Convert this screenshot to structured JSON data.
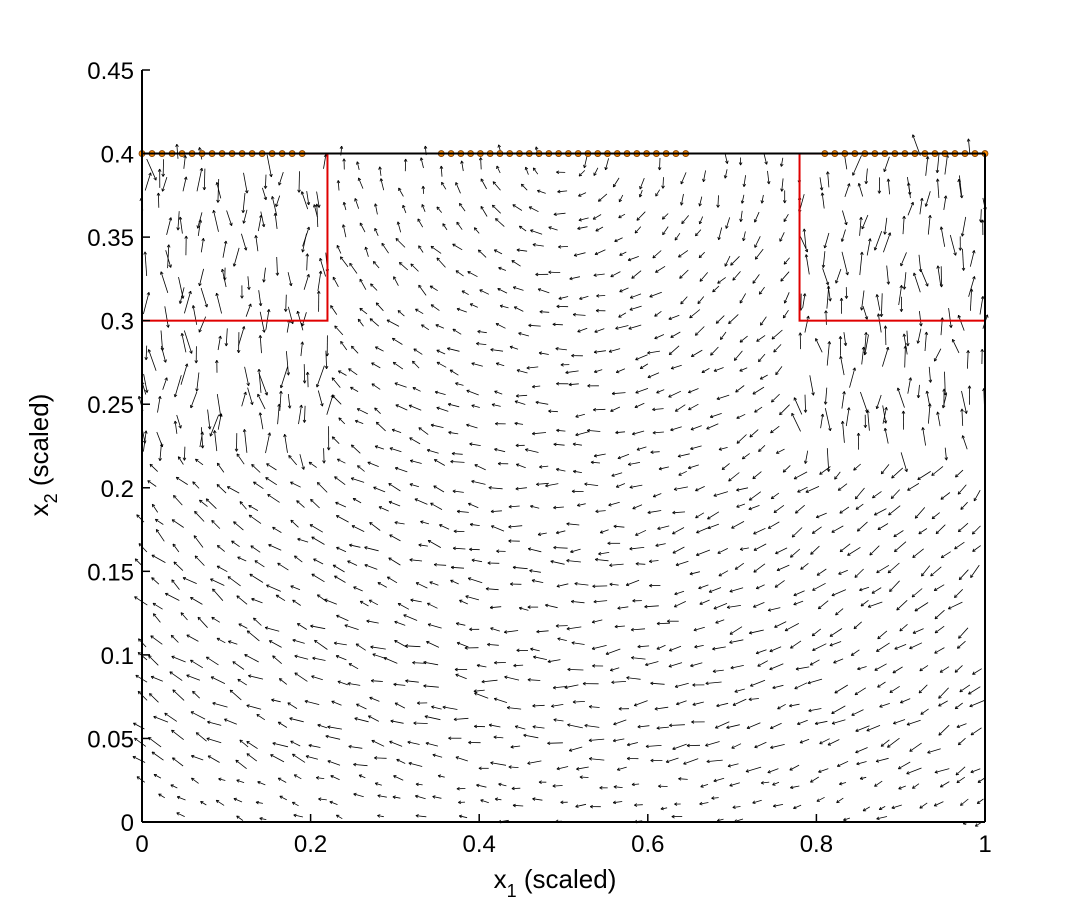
{
  "chart_data": {
    "type": "quiver",
    "title": "",
    "xlabel": {
      "base": "x",
      "subscript": "1",
      "rest": " (scaled)"
    },
    "ylabel": {
      "base": "x",
      "subscript": "2",
      "rest": " (scaled)"
    },
    "xlim": [
      0,
      1
    ],
    "ylim": [
      0,
      0.45
    ],
    "xticks": [
      0,
      0.2,
      0.4,
      0.6,
      0.8,
      1
    ],
    "xtick_labels": [
      "0",
      "0.2",
      "0.4",
      "0.6",
      "0.8",
      "1"
    ],
    "yticks": [
      0,
      0.05,
      0.1,
      0.15,
      0.2,
      0.25,
      0.3,
      0.35,
      0.4,
      0.45
    ],
    "ytick_labels": [
      "0",
      "0.05",
      "0.1",
      "0.15",
      "0.2",
      "0.25",
      "0.3",
      "0.35",
      "0.4",
      "0.45"
    ],
    "grid": false,
    "domain_top_line": {
      "y": 0.4,
      "x": [
        0,
        1
      ],
      "color": "#000000"
    },
    "regions": [
      {
        "name": "left-box",
        "x": [
          0,
          0.22
        ],
        "y": [
          0.3,
          0.4
        ],
        "color": "#e00000"
      },
      {
        "name": "right-box",
        "x": [
          0.78,
          1
        ],
        "y": [
          0.3,
          0.4
        ],
        "color": "#e00000"
      }
    ],
    "marker_series": [
      {
        "name": "left-markers",
        "y": 0.4,
        "x_start": 0,
        "x_end": 0.19,
        "count": 17,
        "color": "#ff8c00"
      },
      {
        "name": "middle-markers",
        "y": 0.4,
        "x_start": 0.355,
        "x_end": 0.645,
        "count": 26,
        "color": "#ff8c00"
      },
      {
        "name": "right-markers",
        "y": 0.4,
        "x_start": 0.81,
        "x_end": 1.0,
        "count": 17,
        "color": "#ff8c00"
      }
    ],
    "vector_field": {
      "description_free": true,
      "x_range": [
        0,
        1
      ],
      "y_range": [
        0,
        0.4
      ],
      "columns": 42,
      "rows": 34,
      "color": "#000000",
      "vortex_center": [
        0.5,
        0.4
      ]
    }
  }
}
